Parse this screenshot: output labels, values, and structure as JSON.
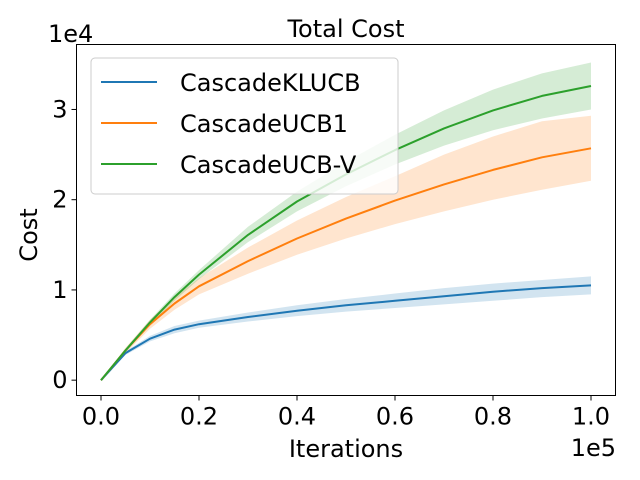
{
  "chart_data": {
    "type": "line",
    "title": "Total Cost",
    "xlabel": "Iterations",
    "ylabel": "Cost",
    "x_multiplier_label": "1e5",
    "y_multiplier_label": "1e4",
    "xlim": [
      -0.05,
      1.05
    ],
    "ylim": [
      -0.17,
      3.72
    ],
    "xticks": [
      0.0,
      0.2,
      0.4,
      0.6,
      0.8,
      1.0
    ],
    "xtick_labels": [
      "0.0",
      "0.2",
      "0.4",
      "0.6",
      "0.8",
      "1.0"
    ],
    "yticks": [
      0,
      1,
      2,
      3
    ],
    "ytick_labels": [
      "0",
      "1",
      "2",
      "3"
    ],
    "grid": false,
    "legend_position": "top-left",
    "x": [
      0.0,
      0.05,
      0.1,
      0.15,
      0.2,
      0.3,
      0.4,
      0.5,
      0.6,
      0.7,
      0.8,
      0.9,
      1.0
    ],
    "series": [
      {
        "name": "CascadeKLUCB",
        "color": "#1f77b4",
        "values": [
          0.0,
          0.3,
          0.46,
          0.56,
          0.62,
          0.7,
          0.77,
          0.83,
          0.88,
          0.93,
          0.98,
          1.02,
          1.05
        ],
        "lower": [
          0.0,
          0.28,
          0.43,
          0.52,
          0.58,
          0.65,
          0.71,
          0.76,
          0.8,
          0.84,
          0.88,
          0.92,
          0.95
        ],
        "upper": [
          0.0,
          0.32,
          0.49,
          0.6,
          0.66,
          0.75,
          0.83,
          0.9,
          0.96,
          1.02,
          1.07,
          1.11,
          1.15
        ]
      },
      {
        "name": "CascadeUCB1",
        "color": "#ff7f0e",
        "values": [
          0.0,
          0.33,
          0.62,
          0.85,
          1.04,
          1.32,
          1.57,
          1.79,
          1.99,
          2.17,
          2.33,
          2.47,
          2.57
        ],
        "lower": [
          0.0,
          0.3,
          0.57,
          0.78,
          0.95,
          1.18,
          1.39,
          1.57,
          1.73,
          1.87,
          2.0,
          2.11,
          2.21
        ],
        "upper": [
          0.0,
          0.36,
          0.67,
          0.92,
          1.13,
          1.47,
          1.77,
          2.03,
          2.26,
          2.5,
          2.7,
          2.87,
          2.93
        ]
      },
      {
        "name": "CascadeUCB-V",
        "color": "#2ca02c",
        "values": [
          0.0,
          0.33,
          0.64,
          0.92,
          1.17,
          1.61,
          1.98,
          2.28,
          2.55,
          2.79,
          2.99,
          3.15,
          3.26
        ],
        "lower": [
          0.0,
          0.31,
          0.61,
          0.88,
          1.12,
          1.53,
          1.87,
          2.15,
          2.39,
          2.6,
          2.77,
          2.9,
          3.0
        ],
        "upper": [
          0.0,
          0.35,
          0.67,
          0.96,
          1.22,
          1.7,
          2.09,
          2.42,
          2.72,
          2.99,
          3.22,
          3.4,
          3.52
        ]
      }
    ]
  }
}
